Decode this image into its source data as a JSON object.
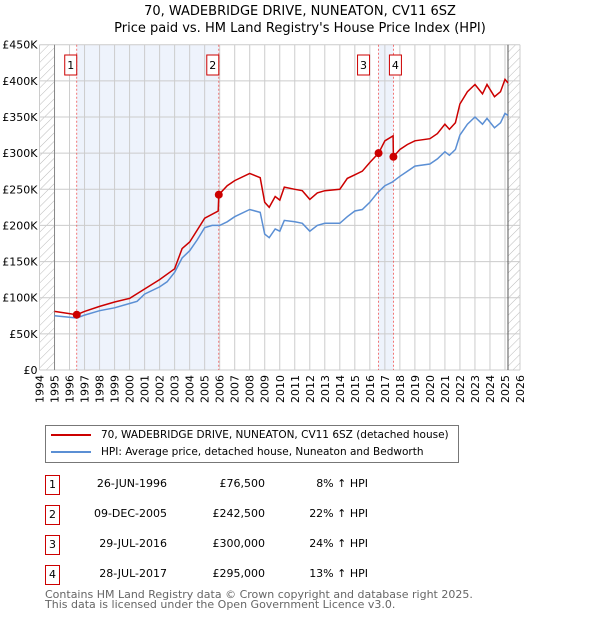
{
  "title": "70, WADEBRIDGE DRIVE, NUNEATON, CV11 6SZ",
  "subtitle": "Price paid vs. HM Land Registry's House Price Index (HPI)",
  "chart_data": {
    "type": "line",
    "ylabel": "",
    "xlabel": "",
    "ylim": [
      0,
      450000
    ],
    "xlim": [
      1994,
      2026
    ],
    "yticks": [
      {
        "v": 0,
        "label": "£0"
      },
      {
        "v": 50000,
        "label": "£50K"
      },
      {
        "v": 100000,
        "label": "£100K"
      },
      {
        "v": 150000,
        "label": "£150K"
      },
      {
        "v": 200000,
        "label": "£200K"
      },
      {
        "v": 250000,
        "label": "£250K"
      },
      {
        "v": 300000,
        "label": "£300K"
      },
      {
        "v": 350000,
        "label": "£350K"
      },
      {
        "v": 400000,
        "label": "£400K"
      },
      {
        "v": 450000,
        "label": "£450K"
      }
    ],
    "xticks": [
      "1994",
      "1995",
      "1996",
      "1997",
      "1998",
      "1999",
      "2000",
      "2001",
      "2002",
      "2003",
      "2004",
      "2005",
      "2006",
      "2007",
      "2008",
      "2009",
      "2010",
      "2011",
      "2012",
      "2013",
      "2014",
      "2015",
      "2016",
      "2017",
      "2018",
      "2019",
      "2020",
      "2021",
      "2022",
      "2023",
      "2024",
      "2025",
      "2026"
    ],
    "grid": true,
    "data_range": [
      1995,
      2025.2
    ],
    "series": [
      {
        "name": "70, WADEBRIDGE DRIVE, NUNEATON, CV11 6SZ (detached house)",
        "color": "#cc0000",
        "x": [
          1995,
          1996.48,
          1997,
          1998,
          1999,
          2000,
          2001,
          2002,
          2003,
          2003.5,
          2004,
          2005,
          2005.9,
          2005.94,
          2006.5,
          2007,
          2008,
          2008.7,
          2009,
          2009.3,
          2009.7,
          2010,
          2010.3,
          2011,
          2011.5,
          2012,
          2012.5,
          2013,
          2014,
          2014.5,
          2015,
          2015.5,
          2016,
          2016.58,
          2017,
          2017.55,
          2017.57,
          2018,
          2018.5,
          2019,
          2020,
          2020.5,
          2021,
          2021.3,
          2021.7,
          2022,
          2022.5,
          2023,
          2023.5,
          2023.8,
          2024.3,
          2024.7,
          2025,
          2025.2
        ],
        "y": [
          81000,
          76500,
          81000,
          88000,
          94000,
          99000,
          112000,
          125000,
          140000,
          168000,
          177000,
          210000,
          220000,
          242500,
          255000,
          262000,
          272000,
          266000,
          232000,
          225000,
          240000,
          235000,
          253000,
          250000,
          248000,
          236000,
          245000,
          248000,
          250000,
          265000,
          270000,
          275000,
          287000,
          300000,
          317000,
          324000,
          295000,
          305000,
          312000,
          317000,
          320000,
          327000,
          340000,
          333000,
          342000,
          368000,
          385000,
          395000,
          382000,
          395000,
          378000,
          385000,
          402000,
          397000
        ]
      },
      {
        "name": "HPI: Average price, detached house, Nuneaton and Bedworth",
        "color": "#5b8fd4",
        "x": [
          1995,
          1996,
          1996.5,
          1997,
          1998,
          1999,
          2000,
          2000.5,
          2001,
          2002,
          2002.5,
          2003,
          2003.5,
          2004,
          2004.5,
          2005,
          2005.5,
          2006,
          2006.5,
          2007,
          2008,
          2008.7,
          2009,
          2009.3,
          2009.7,
          2010,
          2010.3,
          2011,
          2011.5,
          2012,
          2012.5,
          2013,
          2014,
          2014.5,
          2015,
          2015.5,
          2016,
          2016.5,
          2017,
          2017.5,
          2018,
          2018.5,
          2019,
          2020,
          2020.5,
          2021,
          2021.3,
          2021.7,
          2022,
          2022.5,
          2023,
          2023.5,
          2023.8,
          2024.3,
          2024.7,
          2025,
          2025.2
        ],
        "y": [
          75000,
          73000,
          72000,
          76000,
          82000,
          86000,
          92000,
          95000,
          105000,
          115000,
          122000,
          135000,
          155000,
          165000,
          180000,
          197000,
          200000,
          200000,
          205000,
          212000,
          222000,
          218000,
          188000,
          183000,
          195000,
          192000,
          207000,
          205000,
          203000,
          192000,
          200000,
          203000,
          203000,
          212000,
          220000,
          222000,
          232000,
          245000,
          255000,
          260000,
          268000,
          275000,
          282000,
          285000,
          292000,
          302000,
          297000,
          305000,
          325000,
          340000,
          350000,
          340000,
          348000,
          335000,
          342000,
          355000,
          352000
        ]
      }
    ],
    "sales": [
      {
        "n": "1",
        "x": 1996.48,
        "y": 76500
      },
      {
        "n": "2",
        "x": 2005.94,
        "y": 242500
      },
      {
        "n": "3",
        "x": 2016.58,
        "y": 300000
      },
      {
        "n": "4",
        "x": 2017.57,
        "y": 295000
      }
    ]
  },
  "legend": [
    "70, WADEBRIDGE DRIVE, NUNEATON, CV11 6SZ (detached house)",
    "HPI: Average price, detached house, Nuneaton and Bedworth"
  ],
  "transactions": [
    {
      "n": "1",
      "date": "26-JUN-1996",
      "price": "£76,500",
      "hpi": "8% ↑ HPI"
    },
    {
      "n": "2",
      "date": "09-DEC-2005",
      "price": "£242,500",
      "hpi": "22% ↑ HPI"
    },
    {
      "n": "3",
      "date": "29-JUL-2016",
      "price": "£300,000",
      "hpi": "24% ↑ HPI"
    },
    {
      "n": "4",
      "date": "28-JUL-2017",
      "price": "£295,000",
      "hpi": "13% ↑ HPI"
    }
  ],
  "footer": [
    "Contains HM Land Registry data © Crown copyright and database right 2025.",
    "This data is licensed under the Open Government Licence v3.0."
  ]
}
